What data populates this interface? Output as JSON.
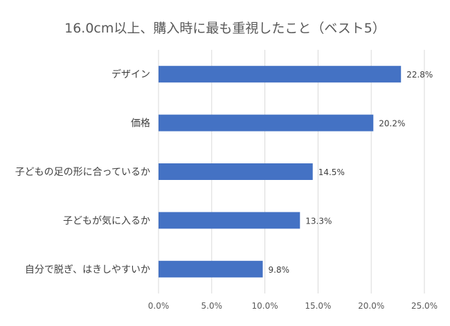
{
  "chart_data": {
    "type": "bar",
    "orientation": "horizontal",
    "title": "16.0cm以上、購入時に最も重視したこと（ベスト5）",
    "categories": [
      "デザイン",
      "価格",
      "子どもの足の形に合っているか",
      "子どもが気に入るか",
      "自分で脱ぎ、はきしやすいか"
    ],
    "values": [
      22.8,
      20.2,
      14.5,
      13.3,
      9.8
    ],
    "data_labels": [
      "22.8%",
      "20.2%",
      "14.5%",
      "13.3%",
      "9.8%"
    ],
    "xlim": [
      0,
      25
    ],
    "xticks": [
      0,
      5,
      10,
      15,
      20,
      25
    ],
    "xtick_labels": [
      "0.0%",
      "5.0%",
      "10.0%",
      "15.0%",
      "20.0%",
      "25.0%"
    ],
    "grid": true,
    "bar_color": "#4472C4",
    "grid_color": "#D9D9D9"
  }
}
